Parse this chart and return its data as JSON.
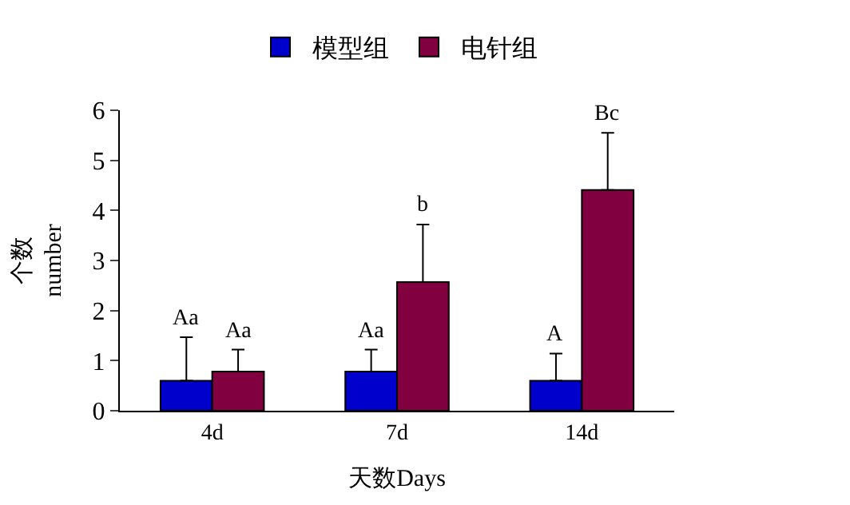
{
  "chart_data": {
    "type": "bar",
    "categories": [
      "4d",
      "7d",
      "14d"
    ],
    "series": [
      {
        "name": "模型组",
        "color": "#0000cc",
        "values": [
          0.6,
          0.78,
          0.6
        ],
        "errors": [
          [
            0.6,
            1.47
          ],
          [
            0.78,
            1.22
          ],
          [
            0.6,
            1.14
          ]
        ]
      },
      {
        "name": "电针组",
        "color": "#800040",
        "values": [
          0.78,
          2.57,
          4.41
        ],
        "errors": [
          [
            0.78,
            1.22
          ],
          [
            2.57,
            3.72
          ],
          [
            4.41,
            5.55
          ]
        ]
      }
    ],
    "xlabel": "天数Days",
    "ylabel": "个数\nnumber",
    "ylim": [
      0,
      6
    ],
    "yticks": [
      0,
      1,
      2,
      3,
      4,
      5,
      6
    ],
    "legend": "top",
    "annotations": [
      "Aa",
      "Aa",
      "Aa",
      "b",
      "A",
      "Bc"
    ]
  }
}
